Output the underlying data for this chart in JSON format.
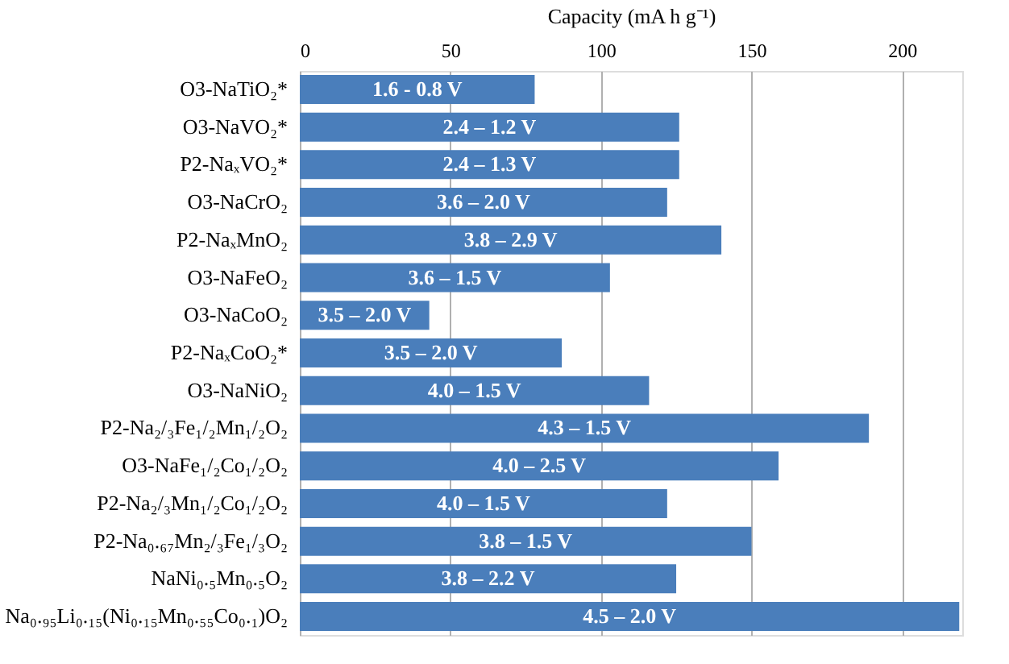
{
  "chart_data": {
    "type": "bar",
    "orientation": "horizontal",
    "xlabel": "Capacity (mA h g⁻¹)",
    "categories": [
      "O3-NaTiO₂*",
      "O3-NaVO₂*",
      "P2-NaₓVO₂*",
      "O3-NaCrO₂",
      "P2-NaₓMnO₂",
      "O3-NaFeO₂",
      "O3-NaCoO₂",
      "P2-NaₓCoO₂*",
      "O3-NaNiO₂",
      "P2-Na₂/₃Fe₁/₂Mn₁/₂O₂",
      "O3-NaFe₁/₂Co₁/₂O₂",
      "P2-Na₂/₃Mn₁/₂Co₁/₂O₂",
      "P2-Na₀.₆₇Mn₂/₃Fe₁/₃O₂",
      "NaNi₀.₅Mn₀.₅O₂",
      "Na₀.₉₅Li₀.₁₅(Ni₀.₁₅Mn₀.₅₅Co₀.₁)O₂"
    ],
    "values": [
      78,
      126,
      126,
      122,
      140,
      103,
      43,
      87,
      116,
      189,
      159,
      122,
      150,
      125,
      219
    ],
    "annotations": [
      "1.6 - 0.8 V",
      "2.4 – 1.2 V",
      "2.4 – 1.3 V",
      "3.6 – 2.0 V",
      "3.8 – 2.9 V",
      "3.6 – 1.5 V",
      "3.5 – 2.0 V",
      "3.5 – 2.0 V",
      "4.0 – 1.5 V",
      "4.3 – 1.5 V",
      "4.0 – 2.5 V",
      "4.0 – 1.5 V",
      "3.8 – 1.5 V",
      "3.8 – 2.2 V",
      "4.5 – 2.0 V"
    ],
    "color": "#4a7ebb",
    "xlim": [
      0,
      220
    ],
    "xticks": [
      0,
      50,
      100,
      150,
      200
    ],
    "grid": "x"
  }
}
